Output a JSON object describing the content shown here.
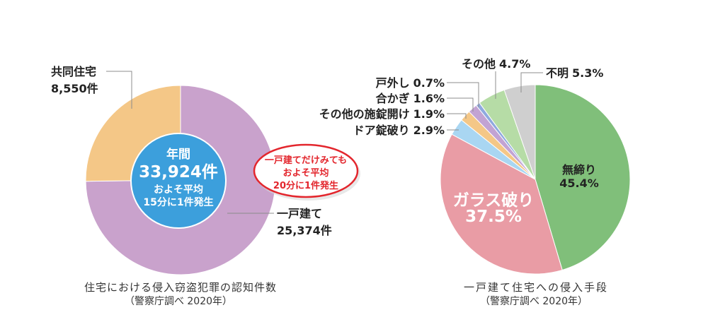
{
  "chart_data": [
    {
      "type": "pie",
      "caption": "住宅における侵入窃盗犯罪の認知件数",
      "source": "（警察庁調べ 2020年）",
      "slices": [
        {
          "label": "一戸建て",
          "value": 25374,
          "value_label": "25,374件",
          "color": "#c9a2cc"
        },
        {
          "label": "共同住宅",
          "value": 8550,
          "value_label": "8,550件",
          "color": "#f4c787"
        }
      ],
      "center": {
        "heading": "年間",
        "total": "33,924件",
        "note_line1": "およそ平均",
        "note_line2": "15分に1件発生",
        "color": "#3c9fdc"
      },
      "callout": {
        "lines": [
          "一戸建てだけみても",
          "およそ平均",
          "20分に1件発生"
        ],
        "color": "#e3262d"
      }
    },
    {
      "type": "pie",
      "caption": "一戸建て住宅への侵入手段",
      "source": "（警察庁調べ 2020年）",
      "slices": [
        {
          "label": "無締り",
          "value": 45.4,
          "value_label": "45.4%",
          "color": "#80bf7a"
        },
        {
          "label": "ガラス破り",
          "value": 37.5,
          "value_label": "37.5%",
          "color": "#e99ca5"
        },
        {
          "label": "ドア錠破り",
          "value": 2.9,
          "value_label": "2.9%",
          "color": "#a9d6f2"
        },
        {
          "label": "その他の施錠開け",
          "value": 1.9,
          "value_label": "1.9%",
          "color": "#f4c787"
        },
        {
          "label": "合かぎ",
          "value": 1.6,
          "value_label": "1.6%",
          "color": "#c2a3d3"
        },
        {
          "label": "戸外し",
          "value": 0.7,
          "value_label": "0.7%",
          "color": "#8fa9df"
        },
        {
          "label": "その他",
          "value": 4.7,
          "value_label": "4.7%",
          "color": "#b6dca6"
        },
        {
          "label": "不明",
          "value": 5.3,
          "value_label": "5.3%",
          "color": "#cfcfcf"
        }
      ]
    }
  ]
}
